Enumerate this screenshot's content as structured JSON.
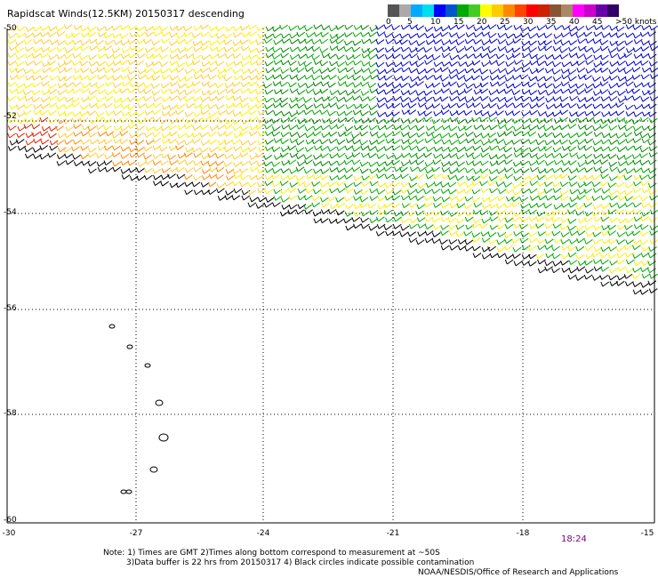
{
  "title": "Rapidscat Winds(12.5KM) 20150317 descending",
  "colorbar": {
    "colors": [
      "#555555",
      "#aaaaaa",
      "#00aaff",
      "#00ddee",
      "#0000ff",
      "#0055cc",
      "#00aa00",
      "#44cc22",
      "#ffff00",
      "#ffcc00",
      "#ff8800",
      "#ff4400",
      "#ff0000",
      "#cc2200",
      "#885533",
      "#aa8866",
      "#ff00ff",
      "#cc00cc",
      "#6600aa",
      "#330066"
    ],
    "labels": [
      "0",
      "5",
      "10",
      "15",
      "20",
      "25",
      "30",
      "35",
      "40",
      "45",
      ">50 knots"
    ]
  },
  "map": {
    "lat_labels": [
      "-50",
      "-52",
      "-54",
      "-56",
      "-58",
      "-60"
    ],
    "lon_labels": [
      "-30",
      "-27",
      "-24",
      "-21",
      "-18",
      "-15"
    ],
    "lat_range": [
      -60,
      -50
    ],
    "lon_range": [
      -30,
      -15
    ],
    "grid": true
  },
  "time_label": "18:24",
  "notes": {
    "line1": "Note: 1) Times are GMT 2)Times along bottom correspond to measurement at ~50S",
    "line2": "3)Data buffer is 22 hrs from 20150317 4) Black circles indicate possible contamination",
    "line3": "NOAA/NESDIS/Office of Research and Applications"
  },
  "wind_colors": {
    "lt5": "#000000",
    "5_10": "#555555",
    "10_15": "#0000cc",
    "15_20": "#00aa00",
    "20_25": "#ffee00",
    "25_30": "#ffcc33",
    "30_35": "#ff8800",
    "35_40": "#dd2200"
  }
}
